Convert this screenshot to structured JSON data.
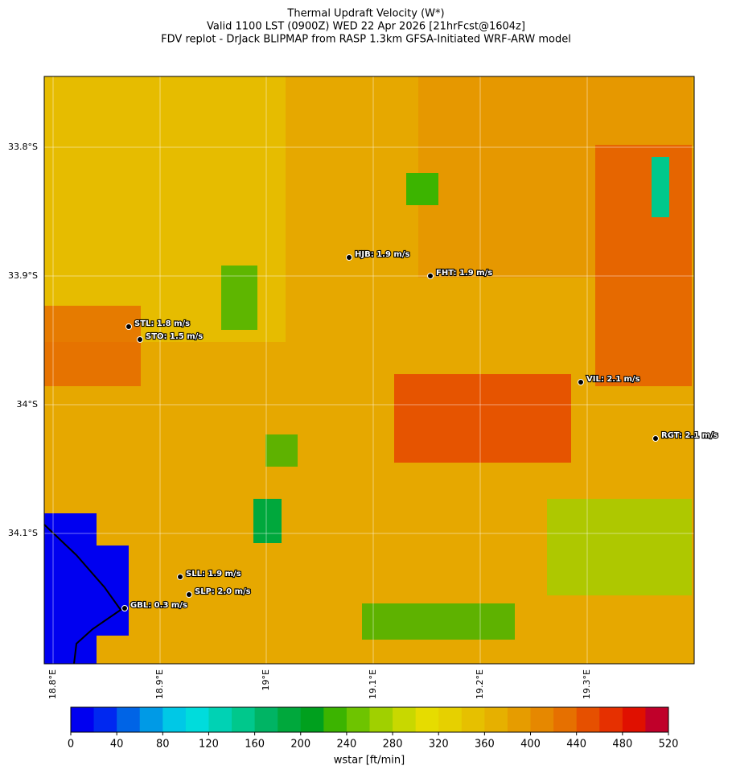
{
  "title": [
    "Thermal Updraft Velocity (W*)",
    "Valid 1100 LST (0900Z) WED 22 Apr 2026 [21hrFcst@1604z]",
    "FDV replot - DrJack BLIPMAP from RASP 1.3km GFSA-Initiated WRF-ARW model"
  ],
  "map": {
    "lat_labels": [
      "33.8°S",
      "33.9°S",
      "34°S",
      "34.1°S"
    ],
    "lon_labels": [
      "18.8°E",
      "18.9°E",
      "19°E",
      "19.1°E",
      "19.2°E",
      "19.3°E"
    ],
    "stations": [
      "HJB: 1.9 m/s",
      "FHT: 1.9 m/s",
      "STL: 1.8 m/s",
      "STO: 1.5 m/s",
      "VIL: 2.1 m/s",
      "RGT: 2.1 m/s",
      "SLL: 1.9 m/s",
      "SLP: 2.0 m/s",
      "GBL: 0.3 m/s"
    ]
  },
  "colorbar": {
    "lim": [
      0,
      520
    ],
    "ticks": [
      0,
      40,
      80,
      120,
      160,
      200,
      240,
      280,
      320,
      360,
      400,
      440,
      480,
      520
    ],
    "colors": [
      "#0000f0",
      "#0028f0",
      "#0064e6",
      "#009ae6",
      "#00c8e6",
      "#00dcdc",
      "#00d2b4",
      "#00c88c",
      "#00b464",
      "#00a83c",
      "#00a01e",
      "#3cb400",
      "#6ec400",
      "#a0d000",
      "#c8d800",
      "#e6dc00",
      "#e6d000",
      "#e6c000",
      "#e6b000",
      "#e69c00",
      "#e68800",
      "#e67000",
      "#e65000",
      "#e63000",
      "#e01000",
      "#c0002a"
    ],
    "label": "wstar [ft/min]"
  }
}
